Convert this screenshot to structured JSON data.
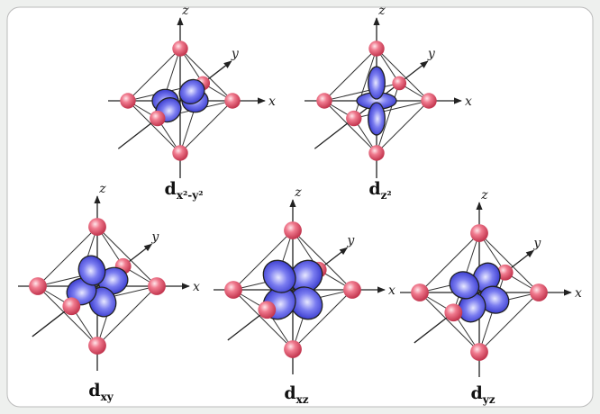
{
  "panels": [
    {
      "label": {
        "main": "d",
        "sub": "x²-y²"
      },
      "axes": {
        "x": "x",
        "y": "y",
        "z": "z"
      }
    },
    {
      "label": {
        "main": "d",
        "sub": "z²"
      },
      "axes": {
        "x": "x",
        "y": "y",
        "z": "z"
      }
    },
    {
      "label": {
        "main": "d",
        "sub": "xy"
      },
      "axes": {
        "x": "x",
        "y": "y",
        "z": "z"
      }
    },
    {
      "label": {
        "main": "d",
        "sub": "xz"
      },
      "axes": {
        "x": "x",
        "y": "y",
        "z": "z"
      }
    },
    {
      "label": {
        "main": "d",
        "sub": "yz"
      },
      "axes": {
        "x": "x",
        "y": "y",
        "z": "z"
      }
    }
  ]
}
